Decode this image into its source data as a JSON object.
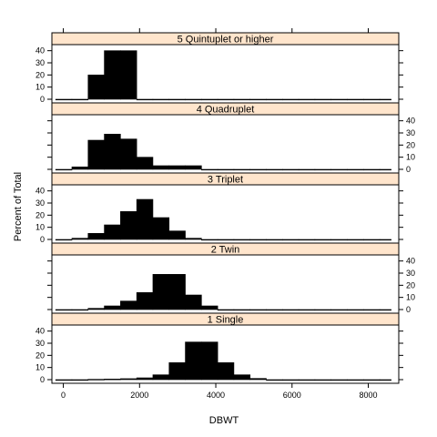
{
  "chart_data": {
    "type": "bar",
    "subtype": "histogram-lattice",
    "xlabel": "DBWT",
    "ylabel": "Percent of Total",
    "xlim": [
      -300,
      8800
    ],
    "ylim": [
      -3,
      45
    ],
    "x_ticks": [
      0,
      2000,
      4000,
      6000,
      8000
    ],
    "y_ticks": [
      0,
      10,
      20,
      30,
      40
    ],
    "strip_color": "#ffe5cc",
    "bar_color": "#000000",
    "bin_edges": [
      -200,
      225,
      650,
      1075,
      1500,
      1925,
      2350,
      2775,
      3200,
      3625,
      4050,
      4475,
      4900,
      5325,
      5750,
      6175,
      6600,
      7025,
      7450,
      7875,
      8300,
      8600
    ],
    "panels": [
      {
        "label": "5 Quintuplet or higher",
        "values": [
          0,
          0,
          20,
          40,
          40,
          0,
          0,
          0,
          0,
          0,
          0,
          0,
          0,
          0,
          0,
          0,
          0,
          0,
          0,
          0,
          0
        ],
        "y_axis_side": "left"
      },
      {
        "label": "4 Quadruplet",
        "values": [
          0,
          2,
          24,
          29,
          25,
          10,
          3,
          3,
          3,
          0,
          0,
          0,
          0,
          0,
          0,
          0,
          0,
          0,
          0,
          0,
          0
        ],
        "y_axis_side": "right"
      },
      {
        "label": "3 Triplet",
        "values": [
          0,
          1,
          5,
          12,
          23,
          33,
          18,
          7,
          1,
          0,
          0,
          0,
          0,
          0,
          0,
          0,
          0,
          0,
          0,
          0,
          0
        ],
        "y_axis_side": "left"
      },
      {
        "label": "2 Twin",
        "values": [
          0,
          0,
          1,
          3,
          7,
          14,
          29,
          29,
          12,
          3,
          0,
          0,
          0,
          0,
          0,
          0,
          0,
          0,
          0,
          0,
          0
        ],
        "y_axis_side": "right"
      },
      {
        "label": "1 Single",
        "values": [
          0,
          0,
          0.3,
          0.5,
          0.8,
          1.5,
          4,
          14,
          31,
          31,
          14,
          4,
          1,
          0,
          0,
          0,
          0,
          0,
          0,
          0,
          0
        ],
        "y_axis_side": "left"
      }
    ]
  }
}
